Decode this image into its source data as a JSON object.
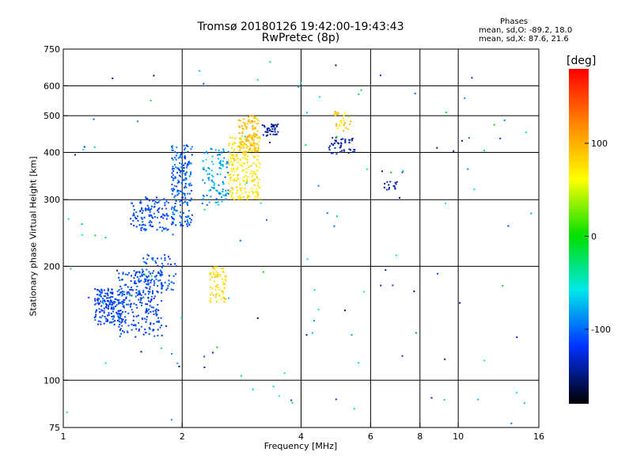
{
  "chart_data": {
    "type": "scatter",
    "title": "Tromsø 20180126 19:42:00-19:43:43",
    "subtitle": "RwPretec (8p)",
    "phases_box": {
      "heading": "Phases",
      "line_o": "mean, sd,O: -89.2, 18.0",
      "line_x": "mean, sd,X:  87.6, 21.6"
    },
    "xlabel": "Frequency [MHz]",
    "ylabel": "Stationary phase Virtual Height [km]",
    "x_scale": "log",
    "y_scale": "log",
    "xlim": [
      1,
      16
    ],
    "ylim": [
      75,
      750
    ],
    "x_ticks": [
      1,
      2,
      4,
      6,
      8,
      10,
      16
    ],
    "x_tick_labels": [
      "1",
      "2",
      "4",
      "6",
      "8",
      "10",
      "16"
    ],
    "y_ticks": [
      75,
      100,
      200,
      300,
      400,
      500,
      600,
      750
    ],
    "y_tick_labels": [
      "75",
      "100",
      "200",
      "300",
      "400",
      "500",
      "600",
      "750"
    ],
    "grid_x": [
      2,
      4,
      6,
      8,
      10
    ],
    "grid_y": [
      100,
      200,
      300,
      400,
      500,
      600
    ],
    "colorbar": {
      "label": "[deg]",
      "min": -180,
      "max": 180,
      "ticks": [
        100,
        0,
        -100
      ],
      "tick_labels": [
        "100",
        "0",
        "-100"
      ]
    },
    "point_clusters": [
      {
        "f_min": 1.2,
        "f_max": 1.42,
        "h_min": 140,
        "h_max": 175,
        "phase": -115,
        "spread": 14,
        "count": 170
      },
      {
        "f_min": 1.38,
        "f_max": 1.78,
        "h_min": 130,
        "h_max": 195,
        "phase": -115,
        "spread": 14,
        "count": 250
      },
      {
        "f_min": 1.55,
        "f_max": 1.95,
        "h_min": 170,
        "h_max": 215,
        "phase": -110,
        "spread": 14,
        "count": 70
      },
      {
        "f_min": 1.48,
        "f_max": 1.85,
        "h_min": 248,
        "h_max": 305,
        "phase": -110,
        "spread": 14,
        "count": 120
      },
      {
        "f_min": 1.88,
        "f_max": 2.12,
        "h_min": 255,
        "h_max": 420,
        "phase": -105,
        "spread": 16,
        "count": 200
      },
      {
        "f_min": 2.25,
        "f_max": 2.62,
        "h_min": 290,
        "h_max": 410,
        "phase": -85,
        "spread": 22,
        "count": 110
      },
      {
        "f_min": 2.62,
        "f_max": 3.15,
        "h_min": 300,
        "h_max": 440,
        "phase": 75,
        "spread": 14,
        "count": 230
      },
      {
        "f_min": 2.78,
        "f_max": 3.12,
        "h_min": 400,
        "h_max": 500,
        "phase": 95,
        "spread": 14,
        "count": 110
      },
      {
        "f_min": 3.18,
        "f_max": 3.5,
        "h_min": 440,
        "h_max": 475,
        "phase": -140,
        "spread": 10,
        "count": 40
      },
      {
        "f_min": 2.35,
        "f_max": 2.58,
        "h_min": 160,
        "h_max": 200,
        "phase": 80,
        "spread": 14,
        "count": 70
      },
      {
        "f_min": 4.7,
        "f_max": 5.5,
        "h_min": 395,
        "h_max": 440,
        "phase": -140,
        "spread": 10,
        "count": 45
      },
      {
        "f_min": 4.85,
        "f_max": 5.4,
        "h_min": 450,
        "h_max": 520,
        "phase": 85,
        "spread": 25,
        "count": 30
      },
      {
        "f_min": 6.45,
        "f_max": 7.0,
        "h_min": 318,
        "h_max": 335,
        "phase": -140,
        "spread": 12,
        "count": 15
      },
      {
        "f_min": 1.0,
        "f_max": 16.0,
        "h_min": 75,
        "h_max": 700,
        "phase": -80,
        "spread": 80,
        "count": 130
      }
    ]
  }
}
